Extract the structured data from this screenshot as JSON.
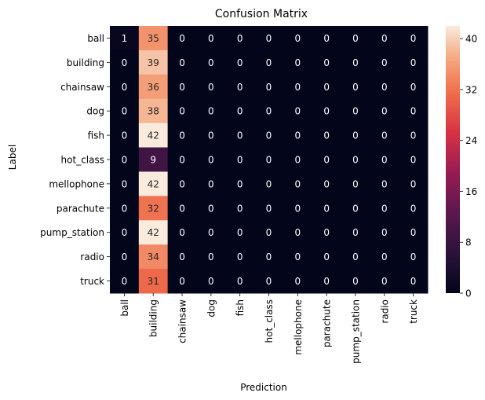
{
  "chart_data": {
    "type": "heatmap",
    "title": "Confusion Matrix",
    "xlabel": "Prediction",
    "ylabel": "Label",
    "x_categories": [
      "ball",
      "building",
      "chainsaw",
      "dog",
      "fish",
      "hot_class",
      "mellophone",
      "parachute",
      "pump_station",
      "radio",
      "truck"
    ],
    "y_categories": [
      "ball",
      "building",
      "chainsaw",
      "dog",
      "fish",
      "hot_class",
      "mellophone",
      "parachute",
      "pump_station",
      "radio",
      "truck"
    ],
    "values": [
      [
        1,
        35,
        0,
        0,
        0,
        0,
        0,
        0,
        0,
        0,
        0
      ],
      [
        0,
        39,
        0,
        0,
        0,
        0,
        0,
        0,
        0,
        0,
        0
      ],
      [
        0,
        36,
        0,
        0,
        0,
        0,
        0,
        0,
        0,
        0,
        0
      ],
      [
        0,
        38,
        0,
        0,
        0,
        0,
        0,
        0,
        0,
        0,
        0
      ],
      [
        0,
        42,
        0,
        0,
        0,
        0,
        0,
        0,
        0,
        0,
        0
      ],
      [
        0,
        9,
        0,
        0,
        0,
        0,
        0,
        0,
        0,
        0,
        0
      ],
      [
        0,
        42,
        0,
        0,
        0,
        0,
        0,
        0,
        0,
        0,
        0
      ],
      [
        0,
        32,
        0,
        0,
        0,
        0,
        0,
        0,
        0,
        0,
        0
      ],
      [
        0,
        42,
        0,
        0,
        0,
        0,
        0,
        0,
        0,
        0,
        0
      ],
      [
        0,
        34,
        0,
        0,
        0,
        0,
        0,
        0,
        0,
        0,
        0
      ],
      [
        0,
        31,
        0,
        0,
        0,
        0,
        0,
        0,
        0,
        0,
        0
      ]
    ],
    "colorbar": {
      "min": 0,
      "max": 42,
      "ticks": [
        0,
        8,
        16,
        24,
        32,
        40
      ],
      "colormap": "rocket"
    },
    "annotations": true
  }
}
